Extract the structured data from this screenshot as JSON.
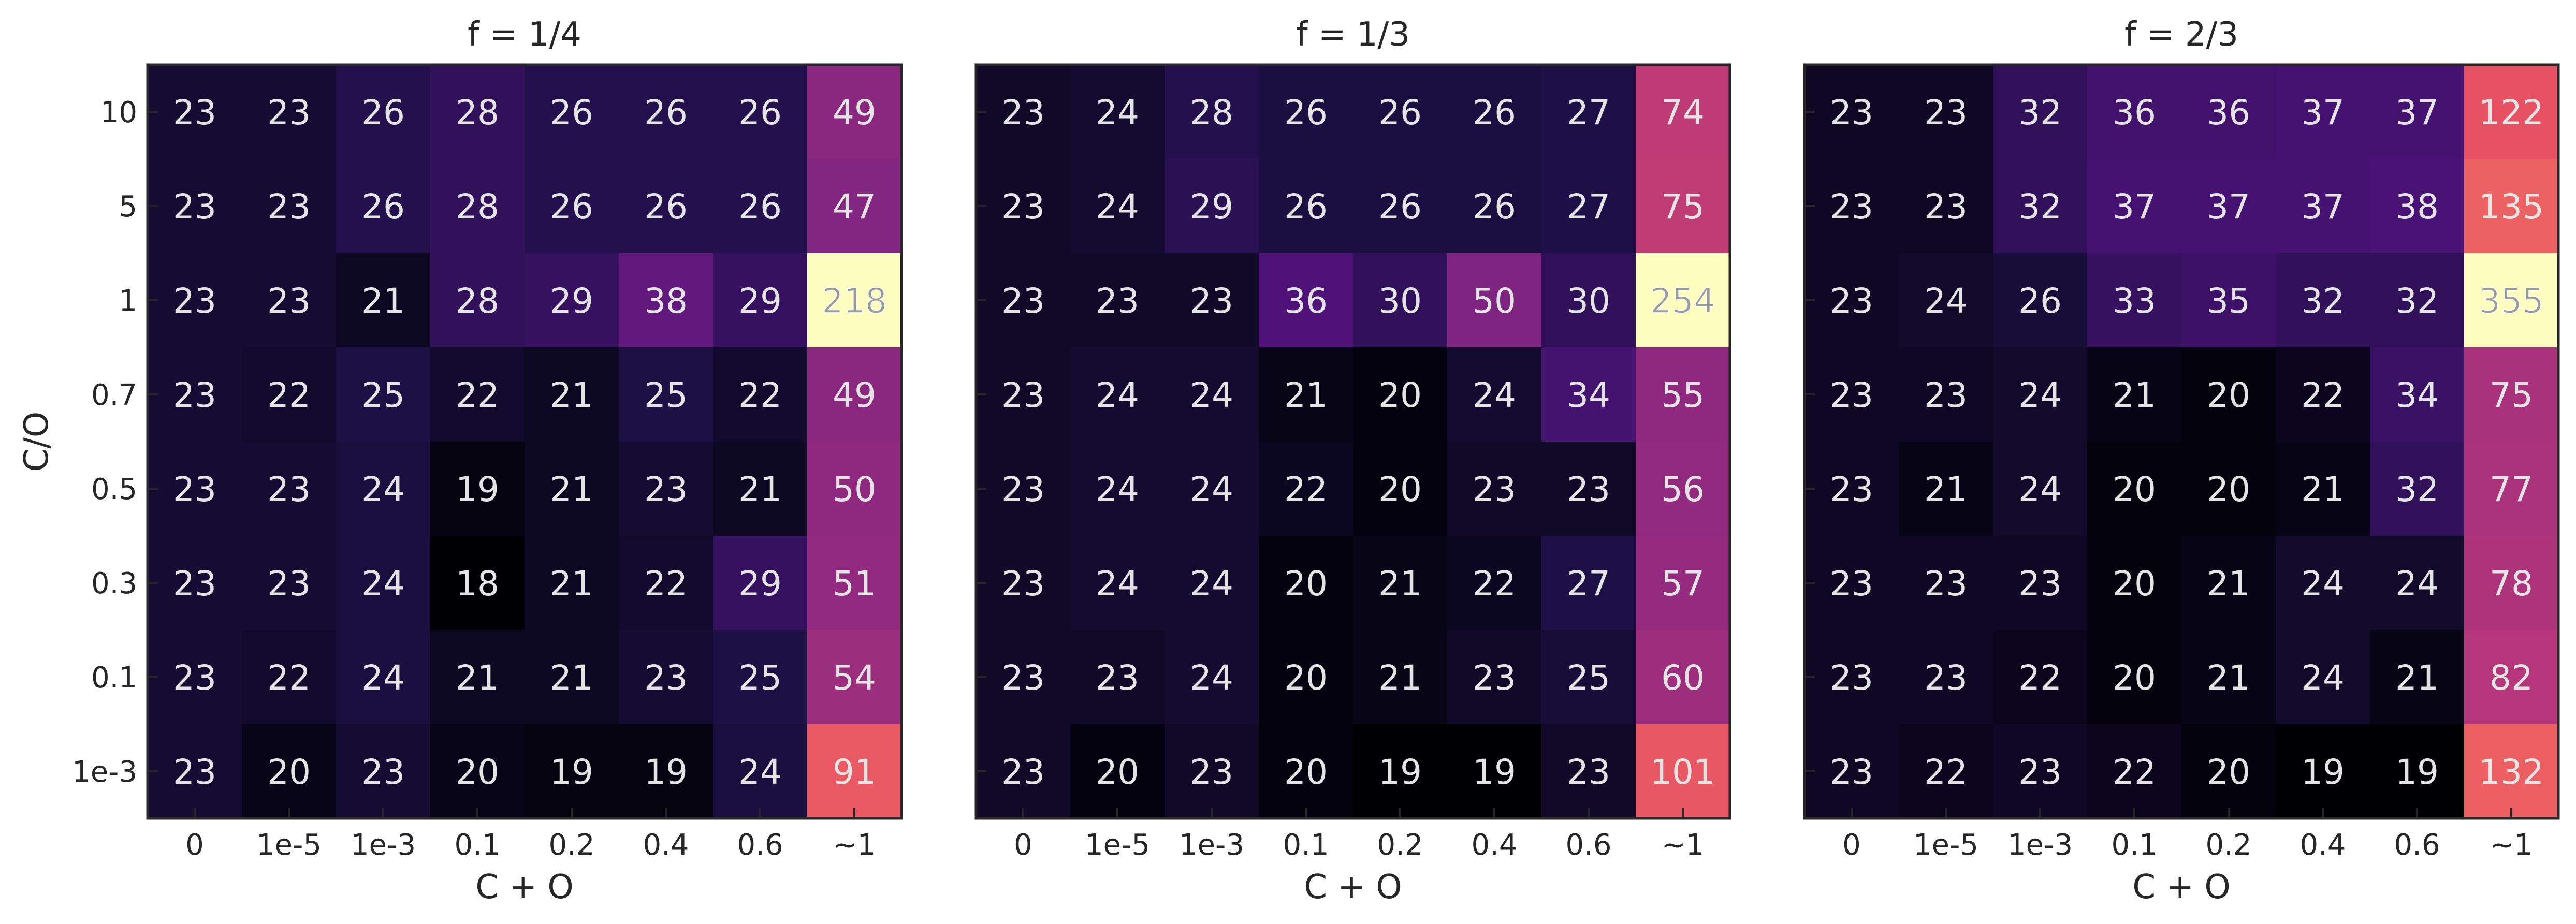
{
  "chart_data": [
    {
      "type": "heatmap",
      "title": "f = 1/4",
      "xlabel": "C + O",
      "ylabel": "C/O",
      "x_categories": [
        "0",
        "1e-5",
        "1e-3",
        "0.1",
        "0.2",
        "0.4",
        "0.6",
        "~1"
      ],
      "y_categories": [
        "10",
        "5",
        "1",
        "0.7",
        "0.5",
        "0.3",
        "0.1",
        "1e-3"
      ],
      "values": [
        [
          23,
          23,
          26,
          28,
          26,
          26,
          26,
          49
        ],
        [
          23,
          23,
          26,
          28,
          26,
          26,
          26,
          47
        ],
        [
          23,
          23,
          21,
          28,
          29,
          38,
          29,
          218
        ],
        [
          23,
          22,
          25,
          22,
          21,
          25,
          22,
          49
        ],
        [
          23,
          23,
          24,
          19,
          21,
          23,
          21,
          50
        ],
        [
          23,
          23,
          24,
          18,
          21,
          22,
          29,
          51
        ],
        [
          23,
          22,
          24,
          21,
          21,
          23,
          25,
          54
        ],
        [
          23,
          20,
          23,
          20,
          19,
          19,
          24,
          91
        ]
      ],
      "colormap": "magma"
    },
    {
      "type": "heatmap",
      "title": "f = 1/3",
      "xlabel": "C + O",
      "ylabel": "",
      "x_categories": [
        "0",
        "1e-5",
        "1e-3",
        "0.1",
        "0.2",
        "0.4",
        "0.6",
        "~1"
      ],
      "y_categories": [
        "10",
        "5",
        "1",
        "0.7",
        "0.5",
        "0.3",
        "0.1",
        "1e-3"
      ],
      "values": [
        [
          23,
          24,
          28,
          26,
          26,
          26,
          27,
          74
        ],
        [
          23,
          24,
          29,
          26,
          26,
          26,
          27,
          75
        ],
        [
          23,
          23,
          23,
          36,
          30,
          50,
          30,
          254
        ],
        [
          23,
          24,
          24,
          21,
          20,
          24,
          34,
          55
        ],
        [
          23,
          24,
          24,
          22,
          20,
          23,
          23,
          56
        ],
        [
          23,
          24,
          24,
          20,
          21,
          22,
          27,
          57
        ],
        [
          23,
          23,
          24,
          20,
          21,
          23,
          25,
          60
        ],
        [
          23,
          20,
          23,
          20,
          19,
          19,
          23,
          101
        ]
      ],
      "colormap": "magma"
    },
    {
      "type": "heatmap",
      "title": "f = 2/3",
      "xlabel": "C + O",
      "ylabel": "",
      "x_categories": [
        "0",
        "1e-5",
        "1e-3",
        "0.1",
        "0.2",
        "0.4",
        "0.6",
        "~1"
      ],
      "y_categories": [
        "10",
        "5",
        "1",
        "0.7",
        "0.5",
        "0.3",
        "0.1",
        "1e-3"
      ],
      "values": [
        [
          23,
          23,
          32,
          36,
          36,
          37,
          37,
          122
        ],
        [
          23,
          23,
          32,
          37,
          37,
          37,
          38,
          135
        ],
        [
          23,
          24,
          26,
          33,
          35,
          32,
          32,
          355
        ],
        [
          23,
          23,
          24,
          21,
          20,
          22,
          34,
          75
        ],
        [
          23,
          21,
          24,
          20,
          20,
          21,
          32,
          77
        ],
        [
          23,
          23,
          23,
          20,
          21,
          24,
          24,
          78
        ],
        [
          23,
          23,
          22,
          20,
          21,
          24,
          21,
          82
        ],
        [
          23,
          22,
          23,
          22,
          20,
          19,
          19,
          132
        ]
      ],
      "colormap": "magma"
    }
  ]
}
